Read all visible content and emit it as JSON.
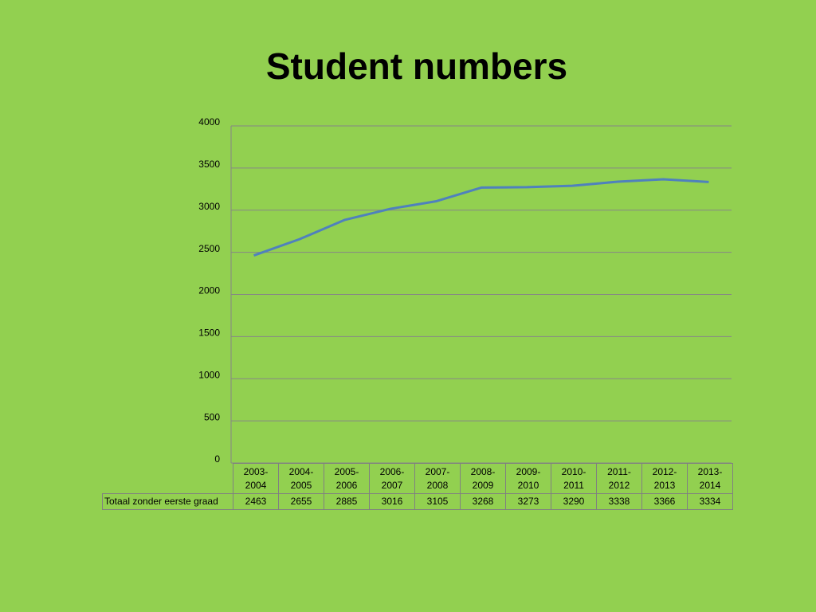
{
  "chart_data": {
    "type": "line",
    "title": "Student numbers",
    "categories": [
      "2003-2004",
      "2004-2005",
      "2005-2006",
      "2006-2007",
      "2007-2008",
      "2008-2009",
      "2009-2010",
      "2010-2011",
      "2011-2012",
      "2012-2013",
      "2013-2014"
    ],
    "series": [
      {
        "name": "Totaal zonder eerste graad",
        "color": "#4f81bd",
        "values": [
          2463,
          2655,
          2885,
          3016,
          3105,
          3268,
          3273,
          3290,
          3338,
          3366,
          3334
        ]
      }
    ],
    "ylim": [
      0,
      4000
    ],
    "yticks": [
      0,
      500,
      1000,
      1500,
      2000,
      2500,
      3000,
      3500,
      4000
    ],
    "grid": true,
    "data_table": true
  }
}
